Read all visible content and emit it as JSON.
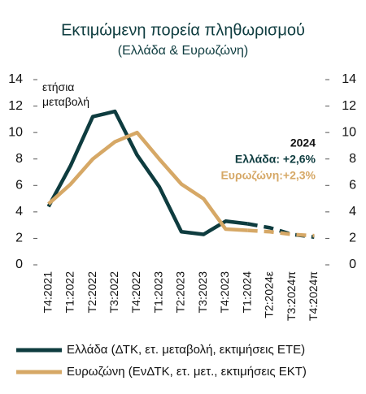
{
  "chart_data": {
    "type": "line",
    "title": "Εκτιμώμενη πορεία πληθωρισμού",
    "subtitle": "(Ελλάδα & Ευρωζώνη)",
    "y_annotation": "ετήσια μεταβολή",
    "annotations": [
      "2024",
      "Ελλάδα: +2,6%",
      "Ευρωζώνη:+2,3%"
    ],
    "categories": [
      "T4:2021",
      "T1:2022",
      "T2:2022",
      "T3:2022",
      "T4:2022",
      "T1:2023",
      "T2:2023",
      "T3:2023",
      "T4:2023",
      "T1:2024",
      "T2:2024ε",
      "T3:2024π",
      "T4:2024π"
    ],
    "series": [
      {
        "name": "Ελλάδα (ΔΤΚ, ετ. μεταβολή, εκτιμήσεις ΕΤΕ)",
        "color": "#0e3c3f",
        "values": [
          4.4,
          7.5,
          11.2,
          11.6,
          8.3,
          5.9,
          2.5,
          2.3,
          3.3,
          3.1,
          2.8,
          2.3,
          2.1
        ]
      },
      {
        "name": "Ευρωζώνη (ΕνΔΤΚ, ετ. μετ., εκτιμήσεις ΕΚΤ)",
        "color": "#d6a866",
        "values": [
          4.6,
          6.1,
          8.0,
          9.3,
          10.0,
          8.0,
          6.1,
          5.0,
          2.7,
          2.6,
          2.5,
          2.3,
          2.2
        ]
      }
    ],
    "ylim": [
      0,
      14
    ],
    "yticks": [
      0,
      2,
      4,
      6,
      8,
      10,
      12,
      14
    ],
    "y2lim": [
      0,
      14
    ],
    "y2ticks": [
      0,
      2,
      4,
      6,
      8,
      10,
      12,
      14
    ],
    "grid": false
  }
}
